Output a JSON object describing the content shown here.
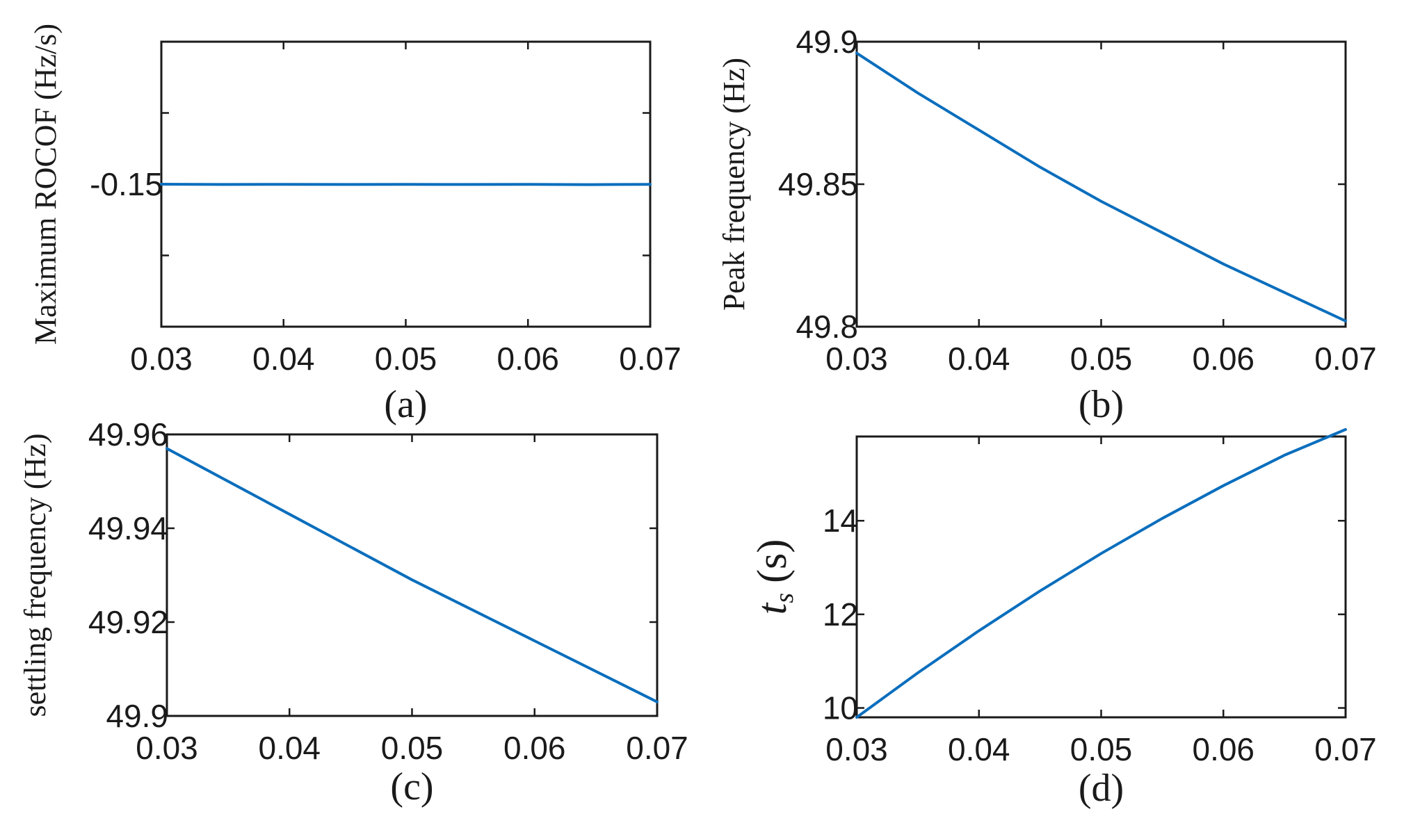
{
  "chart_data": [
    {
      "type": "line",
      "caption": "(a)",
      "ylabel": "Maximum ROCOF (Hz/s)",
      "xlim": [
        0.03,
        0.07
      ],
      "ylim": [
        -0.25,
        -0.05
      ],
      "xticks": [
        0.03,
        0.04,
        0.05,
        0.06,
        0.07
      ],
      "xtick_labels": [
        "0.03",
        "0.04",
        "0.05",
        "0.06",
        "0.07"
      ],
      "yticks": [
        -0.2,
        -0.15,
        -0.1
      ],
      "ytick_labels": [
        "",
        "-0.15",
        ""
      ],
      "series": [
        {
          "name": "series-a",
          "color": "#0a6ebd",
          "x": [
            0.03,
            0.035,
            0.04,
            0.045,
            0.05,
            0.055,
            0.06,
            0.065,
            0.07
          ],
          "y": [
            -0.15,
            -0.1502,
            -0.1501,
            -0.1502,
            -0.1501,
            -0.1502,
            -0.1501,
            -0.1503,
            -0.1501
          ]
        }
      ]
    },
    {
      "type": "line",
      "caption": "(b)",
      "ylabel": "Peak frequency (Hz)",
      "xlim": [
        0.03,
        0.07
      ],
      "ylim": [
        49.8,
        49.9
      ],
      "xticks": [
        0.03,
        0.04,
        0.05,
        0.06,
        0.07
      ],
      "xtick_labels": [
        "0.03",
        "0.04",
        "0.05",
        "0.06",
        "0.07"
      ],
      "yticks": [
        49.8,
        49.85,
        49.9
      ],
      "ytick_labels": [
        "49.8",
        "49.85",
        "49.9"
      ],
      "series": [
        {
          "name": "series-b",
          "color": "#0a6ebd",
          "x": [
            0.03,
            0.035,
            0.04,
            0.045,
            0.05,
            0.055,
            0.06,
            0.065,
            0.07
          ],
          "y": [
            49.896,
            49.882,
            49.869,
            49.856,
            49.844,
            49.833,
            49.822,
            49.812,
            49.802
          ]
        }
      ]
    },
    {
      "type": "line",
      "caption": "(c)",
      "ylabel": "settling frequency (Hz)",
      "xlim": [
        0.03,
        0.07
      ],
      "ylim": [
        49.9,
        49.96
      ],
      "xticks": [
        0.03,
        0.04,
        0.05,
        0.06,
        0.07
      ],
      "xtick_labels": [
        "0.03",
        "0.04",
        "0.05",
        "0.06",
        "0.07"
      ],
      "yticks": [
        49.9,
        49.92,
        49.94,
        49.96
      ],
      "ytick_labels": [
        "49.9",
        "49.92",
        "49.94",
        "49.96"
      ],
      "series": [
        {
          "name": "series-c",
          "color": "#0a6ebd",
          "x": [
            0.03,
            0.04,
            0.05,
            0.06,
            0.07
          ],
          "y": [
            49.957,
            49.943,
            49.929,
            49.916,
            49.903
          ]
        }
      ]
    },
    {
      "type": "line",
      "caption": "(d)",
      "ylabel": "t_s (s)",
      "ylabel_main": "t",
      "ylabel_sub": "s",
      "ylabel_unit": "(s)",
      "xlim": [
        0.03,
        0.07
      ],
      "ylim": [
        9.8,
        15.8
      ],
      "xticks": [
        0.03,
        0.04,
        0.05,
        0.06,
        0.07
      ],
      "xtick_labels": [
        "0.03",
        "0.04",
        "0.05",
        "0.06",
        "0.07"
      ],
      "yticks": [
        10,
        12,
        14
      ],
      "ytick_labels": [
        "10",
        "12",
        "14"
      ],
      "series": [
        {
          "name": "series-d",
          "color": "#0a6ebd",
          "x": [
            0.03,
            0.035,
            0.04,
            0.045,
            0.05,
            0.055,
            0.06,
            0.065,
            0.07
          ],
          "y": [
            9.8,
            10.75,
            11.65,
            12.5,
            13.3,
            14.05,
            14.75,
            15.4,
            15.95
          ]
        }
      ]
    }
  ]
}
